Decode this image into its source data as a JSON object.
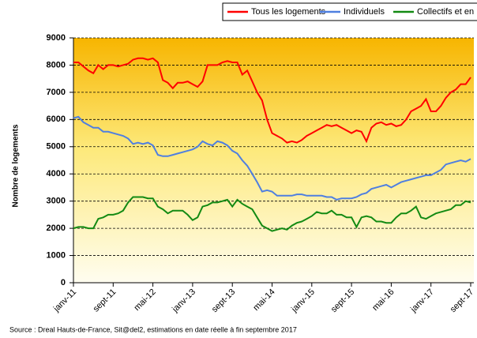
{
  "chart_data": {
    "type": "line",
    "y_label": "Nombre de logements",
    "source": "Source : Dreal Hauts-de-France, Sit@del2, estimations en date réelle à fin septembre 2017",
    "categories": [
      "janv-11",
      null,
      null,
      null,
      null,
      null,
      null,
      null,
      "sept-11",
      null,
      null,
      null,
      null,
      null,
      null,
      null,
      "mai-12",
      null,
      null,
      null,
      null,
      null,
      null,
      null,
      "janv-13",
      null,
      null,
      null,
      null,
      null,
      null,
      null,
      "sept-13",
      null,
      null,
      null,
      null,
      null,
      null,
      null,
      "mai-14",
      null,
      null,
      null,
      null,
      null,
      null,
      null,
      "janv-15",
      null,
      null,
      null,
      null,
      null,
      null,
      null,
      "sept-15",
      null,
      null,
      null,
      null,
      null,
      null,
      null,
      "mai-16",
      null,
      null,
      null,
      null,
      null,
      null,
      null,
      "janv-17",
      null,
      null,
      null,
      null,
      null,
      null,
      null,
      "sept-17"
    ],
    "series": [
      {
        "name": "Tous les logements",
        "color": "#ff0000",
        "values": [
          8100,
          8100,
          7950,
          7800,
          7700,
          8000,
          7850,
          8000,
          8000,
          7950,
          8000,
          8050,
          8200,
          8250,
          8250,
          8200,
          8250,
          8100,
          7450,
          7350,
          7150,
          7350,
          7350,
          7400,
          7300,
          7200,
          7400,
          8000,
          8000,
          8000,
          8100,
          8150,
          8100,
          8100,
          7650,
          7800,
          7400,
          7000,
          6700,
          6000,
          5500,
          5400,
          5300,
          5150,
          5200,
          5150,
          5250,
          5400,
          5500,
          5600,
          5700,
          5800,
          5750,
          5800,
          5700,
          5600,
          5500,
          5600,
          5550,
          5200,
          5700,
          5850,
          5900,
          5800,
          5850,
          5750,
          5800,
          6000,
          6300,
          6400,
          6500,
          6750,
          6300,
          6300,
          6500,
          6800,
          7000,
          7100,
          7300,
          7300,
          7550
        ]
      },
      {
        "name": "Individuels",
        "color": "#4f7fe0",
        "values": [
          6050,
          6100,
          5900,
          5800,
          5700,
          5700,
          5550,
          5550,
          5500,
          5450,
          5400,
          5300,
          5100,
          5150,
          5100,
          5150,
          5050,
          4700,
          4650,
          4650,
          4700,
          4750,
          4800,
          4850,
          4900,
          5000,
          5200,
          5100,
          5050,
          5200,
          5150,
          5050,
          4850,
          4750,
          4500,
          4300,
          4000,
          3700,
          3350,
          3400,
          3350,
          3200,
          3200,
          3200,
          3200,
          3250,
          3250,
          3200,
          3200,
          3200,
          3200,
          3150,
          3150,
          3050,
          3100,
          3100,
          3100,
          3150,
          3250,
          3300,
          3450,
          3500,
          3550,
          3600,
          3500,
          3600,
          3700,
          3750,
          3800,
          3850,
          3900,
          3950,
          3950,
          4050,
          4150,
          4350,
          4400,
          4450,
          4500,
          4450,
          4550
        ]
      },
      {
        "name": "Collectifs et en résidence",
        "color": "#138a13",
        "values": [
          2000,
          2050,
          2050,
          2000,
          2000,
          2350,
          2400,
          2500,
          2500,
          2550,
          2650,
          2950,
          3150,
          3150,
          3150,
          3100,
          3100,
          2800,
          2700,
          2550,
          2650,
          2650,
          2650,
          2500,
          2300,
          2400,
          2800,
          2850,
          2950,
          2950,
          3000,
          3050,
          2800,
          3050,
          2900,
          2800,
          2700,
          2400,
          2100,
          2000,
          1900,
          1950,
          2000,
          1950,
          2100,
          2200,
          2250,
          2350,
          2450,
          2600,
          2550,
          2550,
          2650,
          2500,
          2500,
          2400,
          2400,
          2050,
          2400,
          2450,
          2400,
          2250,
          2250,
          2200,
          2200,
          2400,
          2550,
          2550,
          2650,
          2800,
          2400,
          2350,
          2450,
          2550,
          2600,
          2650,
          2700,
          2850,
          2850,
          3000,
          2950
        ]
      }
    ],
    "ylim": [
      0,
      9000
    ],
    "yticks": [
      0,
      1000,
      2000,
      3000,
      4000,
      5000,
      6000,
      7000,
      8000,
      9000
    ],
    "grid": true
  }
}
